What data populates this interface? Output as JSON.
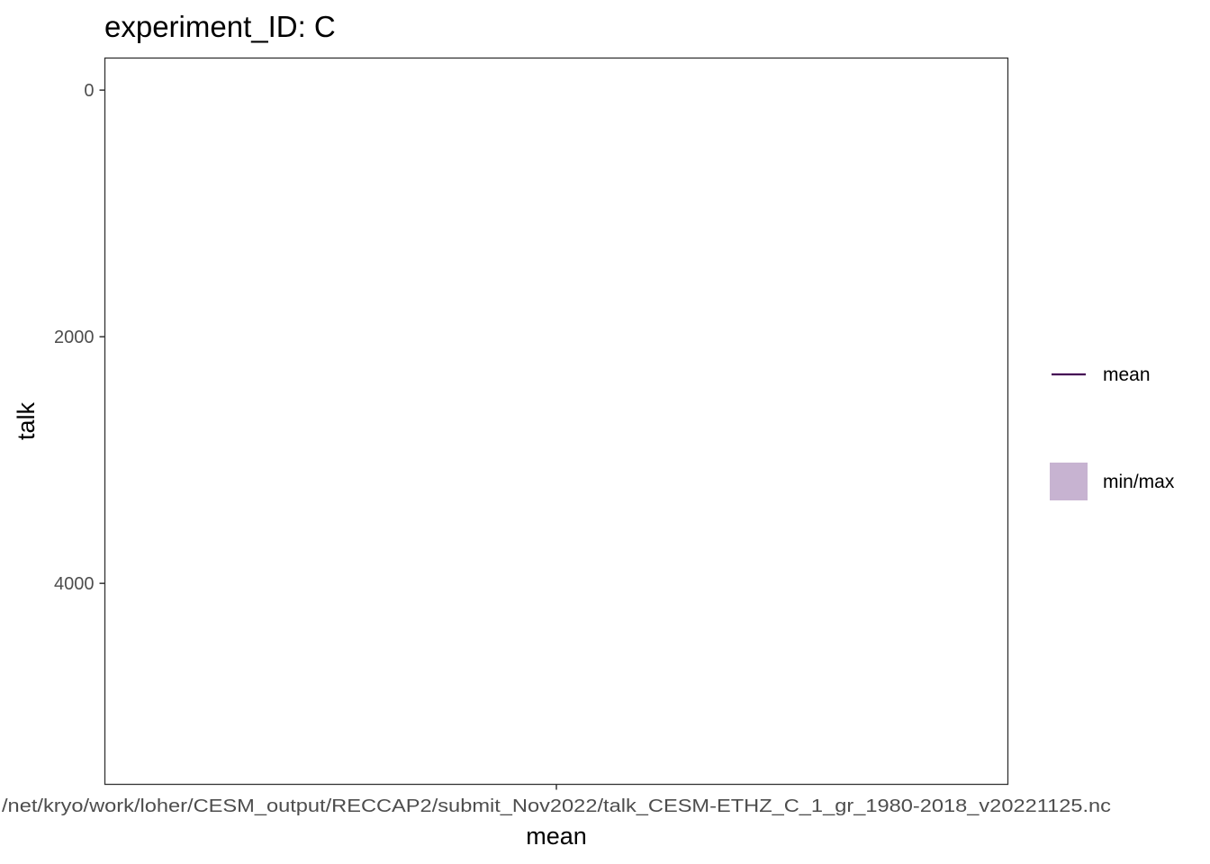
{
  "chart_data": {
    "type": "line",
    "title": "experiment_ID: C",
    "xlabel": "mean",
    "ylabel": "talk",
    "x_categories": [
      "/net/kryo/work/loher/CESM_output/RECCAP2/submit_Nov2022/talk_CESM-ETHZ_C_1_gr_1980-2018_v20221125.nc"
    ],
    "y_ticks": [
      0,
      2000,
      4000
    ],
    "y_tick_labels": [
      "0",
      "2000",
      "4000"
    ],
    "ylim": [
      -260,
      5630
    ],
    "y_reversed": true,
    "grid": false,
    "series": [
      {
        "name": "mean",
        "kind": "line",
        "color": "#440154",
        "values": []
      },
      {
        "name": "min/max",
        "kind": "ribbon",
        "color": "#c7b3d1",
        "values": []
      }
    ],
    "legend_position": "right"
  }
}
